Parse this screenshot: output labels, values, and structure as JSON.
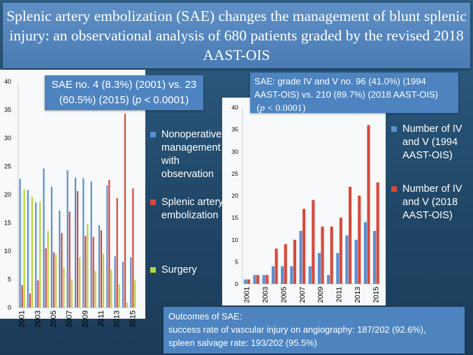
{
  "title": "Splenic artery embolization (SAE) changes the management of blunt splenic injury: an observational analysis of 680 patients graded by the revised 2018 AAST-OIS",
  "callout_left": {
    "text": "SAE no. 4 (8.3%) (2001) vs. 23 (60.5%) (2015) (",
    "p": "p",
    "tail": " < 0.0001)"
  },
  "callout_right": {
    "text": "SAE: grade IV and V no. 96 (41.0%) (1994 AAST-OIS) vs. 210 (89.7%) (2018 AAST-OIS)",
    "p_open": "(",
    "p": "p",
    "tail": " < 0.0001)"
  },
  "outcomes": {
    "heading": "Outcomes of SAE:",
    "line1": "success rate of vascular injury on angiography: 187/202 (92.6%),",
    "line2": "spleen salvage rate: 193/202 (95.5%)"
  },
  "colors": {
    "blue": "#5b8fd1",
    "red": "#d94a3b",
    "green": "#b6d43a",
    "axis": "#cfcfcf"
  },
  "chart_data": [
    {
      "type": "bar",
      "x": [
        2001,
        2002,
        2003,
        2004,
        2005,
        2006,
        2007,
        2008,
        2009,
        2010,
        2011,
        2012,
        2013,
        2014,
        2015
      ],
      "tick_labels": [
        "2001",
        "2003",
        "2005",
        "2007",
        "2009",
        "2011",
        "2013",
        "2015"
      ],
      "ylim": [
        0,
        40
      ],
      "y_ticks": [
        0,
        5,
        10,
        15,
        20,
        25,
        30,
        35,
        40
      ],
      "series": [
        {
          "name": "Nonoperative management with observation",
          "color": "#5b8fd1",
          "values": [
            22.8,
            20.8,
            18.6,
            24.6,
            21.4,
            17.2,
            24.3,
            23.0,
            22.9,
            22.3,
            14.6,
            21.6,
            9.1,
            8.1,
            8.9
          ]
        },
        {
          "name": "Splenic artery embolization",
          "color": "#d94a3b",
          "values": [
            4.0,
            2.5,
            4.8,
            10.5,
            9.8,
            13.2,
            17.0,
            20.6,
            12.7,
            12.5,
            13.7,
            22.6,
            19.4,
            34.3,
            21.1
          ]
        },
        {
          "name": "Surgery",
          "color": "#b6d43a",
          "values": [
            20.9,
            19.6,
            18.8,
            13.6,
            9.4,
            7.1,
            5.0,
            8.9,
            14.8,
            6.5,
            9.5,
            6.7,
            4.1,
            0.9,
            4.8
          ]
        }
      ],
      "legend": "right"
    },
    {
      "type": "bar",
      "x": [
        2001,
        2002,
        2003,
        2004,
        2005,
        2006,
        2007,
        2008,
        2009,
        2010,
        2011,
        2012,
        2013,
        2014,
        2015
      ],
      "tick_labels": [
        "2001",
        "2003",
        "2005",
        "2007",
        "2009",
        "2011",
        "2013",
        "2015"
      ],
      "ylim": [
        0,
        40
      ],
      "y_ticks": [
        0,
        5,
        10,
        15,
        20,
        25,
        30,
        35,
        40
      ],
      "series": [
        {
          "name": "Number of IV and V (1994 AAST-OIS)",
          "color": "#5b8fd1",
          "values": [
            1,
            2,
            2,
            4,
            4,
            4,
            12,
            4,
            7,
            2,
            7,
            11,
            10,
            14,
            12
          ]
        },
        {
          "name": "Number of IV and V (2018 AAST-OIS)",
          "color": "#d94a3b",
          "values": [
            1,
            2,
            2,
            8,
            9,
            10,
            17,
            19,
            13,
            13,
            15,
            22,
            20,
            36,
            23
          ]
        }
      ],
      "legend": "right"
    }
  ],
  "legend1": [
    "Nonoperative management with observation",
    "Splenic artery embolization",
    "Surgery"
  ],
  "legend2": [
    "Number of IV and V (1994 AAST-OIS)",
    "Number of IV and V (2018 AAST-OIS)"
  ]
}
